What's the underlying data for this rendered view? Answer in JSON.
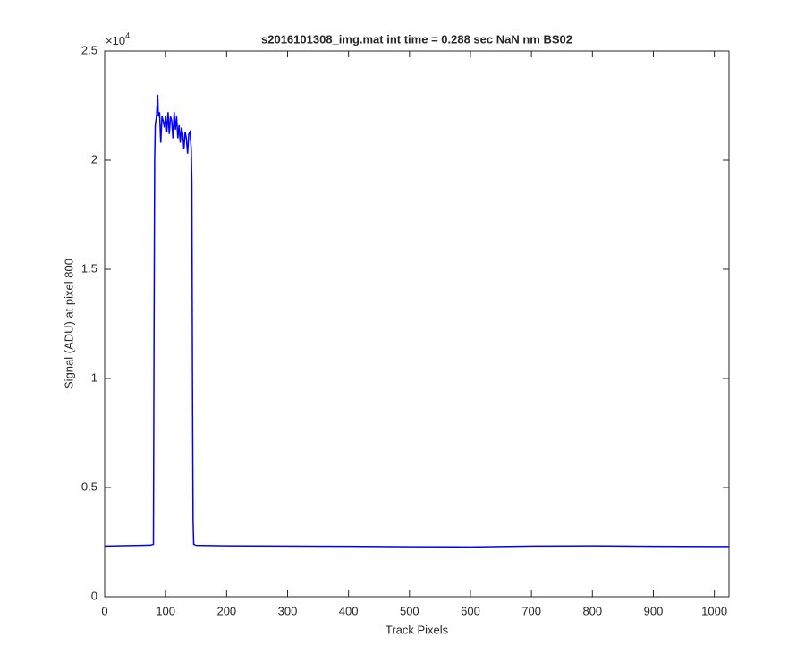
{
  "chart_data": {
    "type": "line",
    "title": "s2016101308_img.mat int time = 0.288 sec  NaN nm BS02",
    "x_label": "Track Pixels",
    "y_label": "Signal (ADU) at pixel 800",
    "y_multiplier": "×10",
    "y_multiplier_exponent": "4",
    "x": [
      0,
      20,
      40,
      60,
      75,
      80,
      81,
      82,
      83,
      85,
      87,
      88,
      90,
      92,
      94,
      96,
      98,
      100,
      102,
      104,
      106,
      108,
      110,
      112,
      114,
      116,
      118,
      120,
      122,
      124,
      126,
      128,
      130,
      132,
      134,
      136,
      138,
      140,
      142,
      143,
      144,
      145,
      146,
      150,
      200,
      300,
      400,
      500,
      600,
      700,
      800,
      900,
      1000,
      1024
    ],
    "series": [
      {
        "color": "#0000ff",
        "values": [
          0.232,
          0.233,
          0.234,
          0.235,
          0.236,
          0.24,
          1.2,
          2.0,
          2.16,
          2.2,
          2.3,
          2.2,
          2.22,
          2.08,
          2.2,
          2.18,
          2.15,
          2.2,
          2.13,
          2.22,
          2.12,
          2.2,
          2.18,
          2.1,
          2.22,
          2.14,
          2.2,
          2.1,
          2.16,
          2.08,
          2.15,
          2.12,
          2.05,
          2.13,
          2.1,
          2.03,
          2.12,
          2.13,
          2.05,
          1.9,
          1.0,
          0.35,
          0.24,
          0.235,
          0.233,
          0.232,
          0.231,
          0.229,
          0.228,
          0.232,
          0.233,
          0.231,
          0.23,
          0.23
        ]
      }
    ],
    "xlim": [
      0,
      1024
    ],
    "xticks": [
      0,
      100,
      200,
      300,
      400,
      500,
      600,
      700,
      800,
      900,
      1000
    ],
    "ylim": [
      0,
      2.5
    ],
    "yticks": [
      0,
      0.5,
      1,
      1.5,
      2,
      2.5
    ],
    "grid": false
  }
}
